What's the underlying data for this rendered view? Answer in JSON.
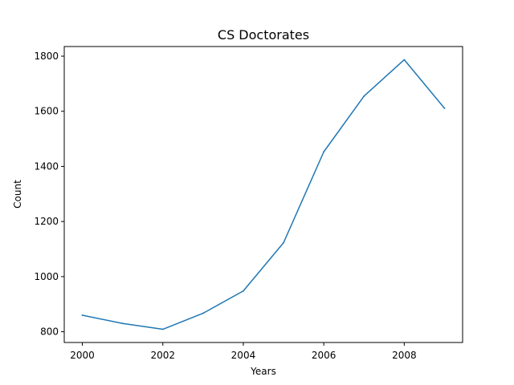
{
  "chart_data": {
    "type": "line",
    "title": "CS Doctorates",
    "xlabel": "Years",
    "ylabel": "Count",
    "xlim": [
      1999.55,
      2009.45
    ],
    "ylim": [
      761,
      1835
    ],
    "x_ticks": [
      2000,
      2002,
      2004,
      2006,
      2008
    ],
    "y_ticks": [
      800,
      1000,
      1200,
      1400,
      1600,
      1800
    ],
    "grid": false,
    "series": [
      {
        "color": "#1f77b4",
        "x": [
          2000,
          2001,
          2002,
          2003,
          2004,
          2005,
          2006,
          2007,
          2008,
          2009
        ],
        "y": [
          860,
          830,
          809,
          867,
          948,
          1123,
          1453,
          1655,
          1787,
          1611
        ]
      }
    ]
  }
}
